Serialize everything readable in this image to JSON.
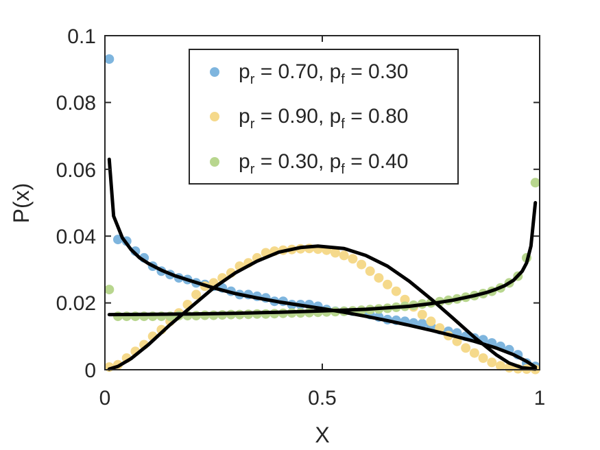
{
  "chart_data": {
    "type": "scatter",
    "xlabel": "X",
    "ylabel": "P(x)",
    "xlim": [
      0,
      1
    ],
    "ylim": [
      0,
      0.1
    ],
    "xticks": [
      "0",
      "0.5",
      "1"
    ],
    "yticks": [
      "0",
      "0.02",
      "0.04",
      "0.06",
      "0.08",
      "0.1"
    ],
    "grid": false,
    "legend_position": "top-center",
    "series": [
      {
        "legend": {
          "p1": "p",
          "s1": "r",
          "m1": " = 0.70, ",
          "p2": "p",
          "s2": "f",
          "m2": " = 0.30"
        },
        "color": "#7eb5de",
        "x": [
          0.01,
          0.03,
          0.05,
          0.07,
          0.09,
          0.11,
          0.13,
          0.15,
          0.17,
          0.19,
          0.21,
          0.23,
          0.25,
          0.27,
          0.29,
          0.31,
          0.33,
          0.35,
          0.37,
          0.39,
          0.41,
          0.43,
          0.45,
          0.47,
          0.49,
          0.51,
          0.53,
          0.55,
          0.57,
          0.59,
          0.61,
          0.63,
          0.65,
          0.67,
          0.69,
          0.71,
          0.73,
          0.75,
          0.77,
          0.79,
          0.81,
          0.83,
          0.85,
          0.87,
          0.89,
          0.91,
          0.93,
          0.95,
          0.97,
          0.99
        ],
        "y": [
          0.093,
          0.039,
          0.0385,
          0.0355,
          0.0335,
          0.031,
          0.0295,
          0.0285,
          0.0275,
          0.027,
          0.026,
          0.0255,
          0.025,
          0.0245,
          0.0235,
          0.0225,
          0.0225,
          0.022,
          0.0215,
          0.0205,
          0.0205,
          0.0195,
          0.0195,
          0.0195,
          0.019,
          0.018,
          0.0175,
          0.0175,
          0.0175,
          0.0172,
          0.0165,
          0.0158,
          0.015,
          0.0148,
          0.0145,
          0.014,
          0.0138,
          0.013,
          0.012,
          0.0115,
          0.011,
          0.01,
          0.0095,
          0.009,
          0.008,
          0.007,
          0.006,
          0.0045,
          0.002,
          0.001
        ]
      },
      {
        "legend": {
          "p1": "p",
          "s1": "r",
          "m1": " = 0.90, ",
          "p2": "p",
          "s2": "f",
          "m2": " = 0.80"
        },
        "color": "#f5d98b",
        "x": [
          0.01,
          0.03,
          0.05,
          0.07,
          0.09,
          0.11,
          0.13,
          0.15,
          0.17,
          0.19,
          0.21,
          0.23,
          0.25,
          0.27,
          0.29,
          0.31,
          0.33,
          0.35,
          0.37,
          0.39,
          0.41,
          0.43,
          0.45,
          0.47,
          0.49,
          0.51,
          0.53,
          0.55,
          0.57,
          0.59,
          0.61,
          0.63,
          0.65,
          0.67,
          0.69,
          0.71,
          0.73,
          0.75,
          0.77,
          0.79,
          0.81,
          0.83,
          0.85,
          0.87,
          0.89,
          0.91,
          0.93,
          0.95,
          0.97,
          0.99
        ],
        "y": [
          0.0008,
          0.0015,
          0.0035,
          0.0055,
          0.0075,
          0.01,
          0.012,
          0.0145,
          0.017,
          0.0195,
          0.0225,
          0.025,
          0.026,
          0.0275,
          0.029,
          0.031,
          0.032,
          0.0335,
          0.035,
          0.0355,
          0.0358,
          0.036,
          0.0362,
          0.0363,
          0.0361,
          0.0358,
          0.035,
          0.0342,
          0.0332,
          0.0315,
          0.0295,
          0.0275,
          0.0255,
          0.0235,
          0.021,
          0.0188,
          0.0165,
          0.0145,
          0.0125,
          0.0102,
          0.0085,
          0.0065,
          0.005,
          0.0035,
          0.0022,
          0.0012,
          0.0006,
          0.0003,
          0.0002,
          0.0001
        ]
      },
      {
        "legend": {
          "p1": "p",
          "s1": "r",
          "m1": " = 0.30, ",
          "p2": "p",
          "s2": "f",
          "m2": " = 0.40"
        },
        "color": "#b8d68e",
        "x": [
          0.01,
          0.03,
          0.05,
          0.07,
          0.09,
          0.11,
          0.13,
          0.15,
          0.17,
          0.19,
          0.21,
          0.23,
          0.25,
          0.27,
          0.29,
          0.31,
          0.33,
          0.35,
          0.37,
          0.39,
          0.41,
          0.43,
          0.45,
          0.47,
          0.49,
          0.51,
          0.53,
          0.55,
          0.57,
          0.59,
          0.61,
          0.63,
          0.65,
          0.67,
          0.69,
          0.71,
          0.73,
          0.75,
          0.77,
          0.79,
          0.81,
          0.83,
          0.85,
          0.87,
          0.89,
          0.91,
          0.93,
          0.95,
          0.97,
          0.99
        ],
        "y": [
          0.024,
          0.016,
          0.016,
          0.016,
          0.016,
          0.016,
          0.016,
          0.016,
          0.0162,
          0.0162,
          0.0162,
          0.0163,
          0.0163,
          0.0164,
          0.0165,
          0.0165,
          0.0166,
          0.0167,
          0.0167,
          0.0168,
          0.0169,
          0.017,
          0.017,
          0.0171,
          0.0172,
          0.0173,
          0.0174,
          0.0175,
          0.0176,
          0.0178,
          0.018,
          0.0182,
          0.0184,
          0.0187,
          0.019,
          0.0193,
          0.0197,
          0.02,
          0.0204,
          0.0208,
          0.0212,
          0.0217,
          0.0222,
          0.0228,
          0.0235,
          0.0245,
          0.026,
          0.028,
          0.0335,
          0.056
        ]
      }
    ],
    "fit_lines": [
      {
        "color": "#000000",
        "x": [
          0.01,
          0.02,
          0.04,
          0.06,
          0.08,
          0.1,
          0.13,
          0.16,
          0.2,
          0.25,
          0.3,
          0.35,
          0.4,
          0.45,
          0.5,
          0.55,
          0.6,
          0.65,
          0.7,
          0.75,
          0.8,
          0.85,
          0.9,
          0.94,
          0.97,
          0.99
        ],
        "y": [
          0.063,
          0.046,
          0.0395,
          0.036,
          0.0335,
          0.0318,
          0.0298,
          0.0282,
          0.0265,
          0.0245,
          0.0228,
          0.0215,
          0.0203,
          0.0193,
          0.0183,
          0.0172,
          0.016,
          0.0147,
          0.0133,
          0.0118,
          0.0102,
          0.0085,
          0.0065,
          0.0045,
          0.0025,
          0.0008
        ]
      },
      {
        "color": "#000000",
        "x": [
          0.01,
          0.03,
          0.06,
          0.1,
          0.15,
          0.2,
          0.25,
          0.3,
          0.35,
          0.4,
          0.45,
          0.49,
          0.55,
          0.6,
          0.65,
          0.7,
          0.75,
          0.8,
          0.85,
          0.9,
          0.93,
          0.96,
          0.99
        ],
        "y": [
          0.0002,
          0.001,
          0.0033,
          0.0075,
          0.0135,
          0.019,
          0.0245,
          0.029,
          0.0325,
          0.0352,
          0.0366,
          0.037,
          0.0363,
          0.0342,
          0.031,
          0.0265,
          0.0212,
          0.0155,
          0.0097,
          0.0045,
          0.002,
          0.0006,
          0.0002
        ]
      },
      {
        "color": "#000000",
        "x": [
          0.01,
          0.1,
          0.2,
          0.3,
          0.4,
          0.5,
          0.6,
          0.7,
          0.75,
          0.8,
          0.85,
          0.88,
          0.9,
          0.92,
          0.94,
          0.96,
          0.97,
          0.98,
          0.99
        ],
        "y": [
          0.0165,
          0.0166,
          0.0167,
          0.0169,
          0.0172,
          0.0176,
          0.0181,
          0.019,
          0.0198,
          0.0208,
          0.0222,
          0.0232,
          0.0241,
          0.0252,
          0.0268,
          0.0295,
          0.032,
          0.037,
          0.05
        ]
      }
    ]
  }
}
